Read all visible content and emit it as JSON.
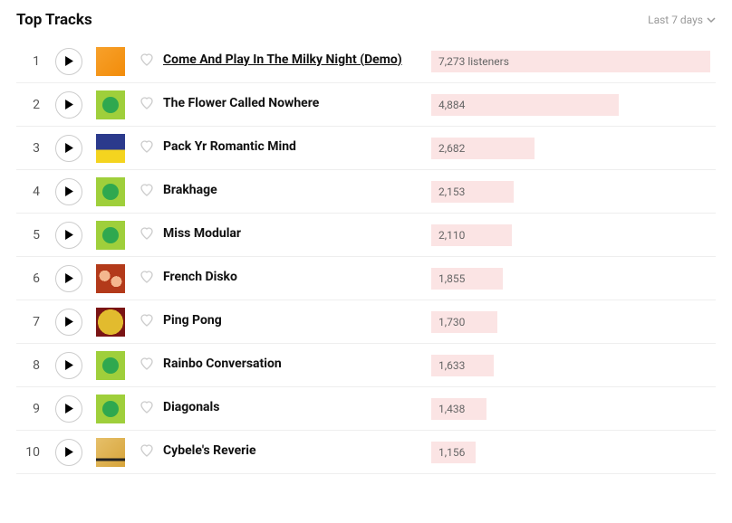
{
  "header": {
    "title": "Top Tracks",
    "period_label": "Last 7 days"
  },
  "bar_bg_color": "#fbe4e4",
  "max_listeners": 7273,
  "tracks": [
    {
      "rank": 1,
      "name": "Come And Play In The Milky Night (Demo)",
      "listeners_text": "7,273 listeners",
      "listeners": 7273,
      "underlined": true,
      "art": "art-orange"
    },
    {
      "rank": 2,
      "name": "The Flower Called Nowhere",
      "listeners_text": "4,884",
      "listeners": 4884,
      "underlined": false,
      "art": "art-dots"
    },
    {
      "rank": 3,
      "name": "Pack Yr Romantic Mind",
      "listeners_text": "2,682",
      "listeners": 2682,
      "underlined": false,
      "art": "art-blueyellow"
    },
    {
      "rank": 4,
      "name": "Brakhage",
      "listeners_text": "2,153",
      "listeners": 2153,
      "underlined": false,
      "art": "art-dots"
    },
    {
      "rank": 5,
      "name": "Miss Modular",
      "listeners_text": "2,110",
      "listeners": 2110,
      "underlined": false,
      "art": "art-dots"
    },
    {
      "rank": 6,
      "name": "French Disko",
      "listeners_text": "1,855",
      "listeners": 1855,
      "underlined": false,
      "art": "art-redpattern"
    },
    {
      "rank": 7,
      "name": "Ping Pong",
      "listeners_text": "1,730",
      "listeners": 1730,
      "underlined": false,
      "art": "art-gold"
    },
    {
      "rank": 8,
      "name": "Rainbo Conversation",
      "listeners_text": "1,633",
      "listeners": 1633,
      "underlined": false,
      "art": "art-dots"
    },
    {
      "rank": 9,
      "name": "Diagonals",
      "listeners_text": "1,438",
      "listeners": 1438,
      "underlined": false,
      "art": "art-dots"
    },
    {
      "rank": 10,
      "name": "Cybele's Reverie",
      "listeners_text": "1,156",
      "listeners": 1156,
      "underlined": false,
      "art": "art-reverie"
    }
  ]
}
